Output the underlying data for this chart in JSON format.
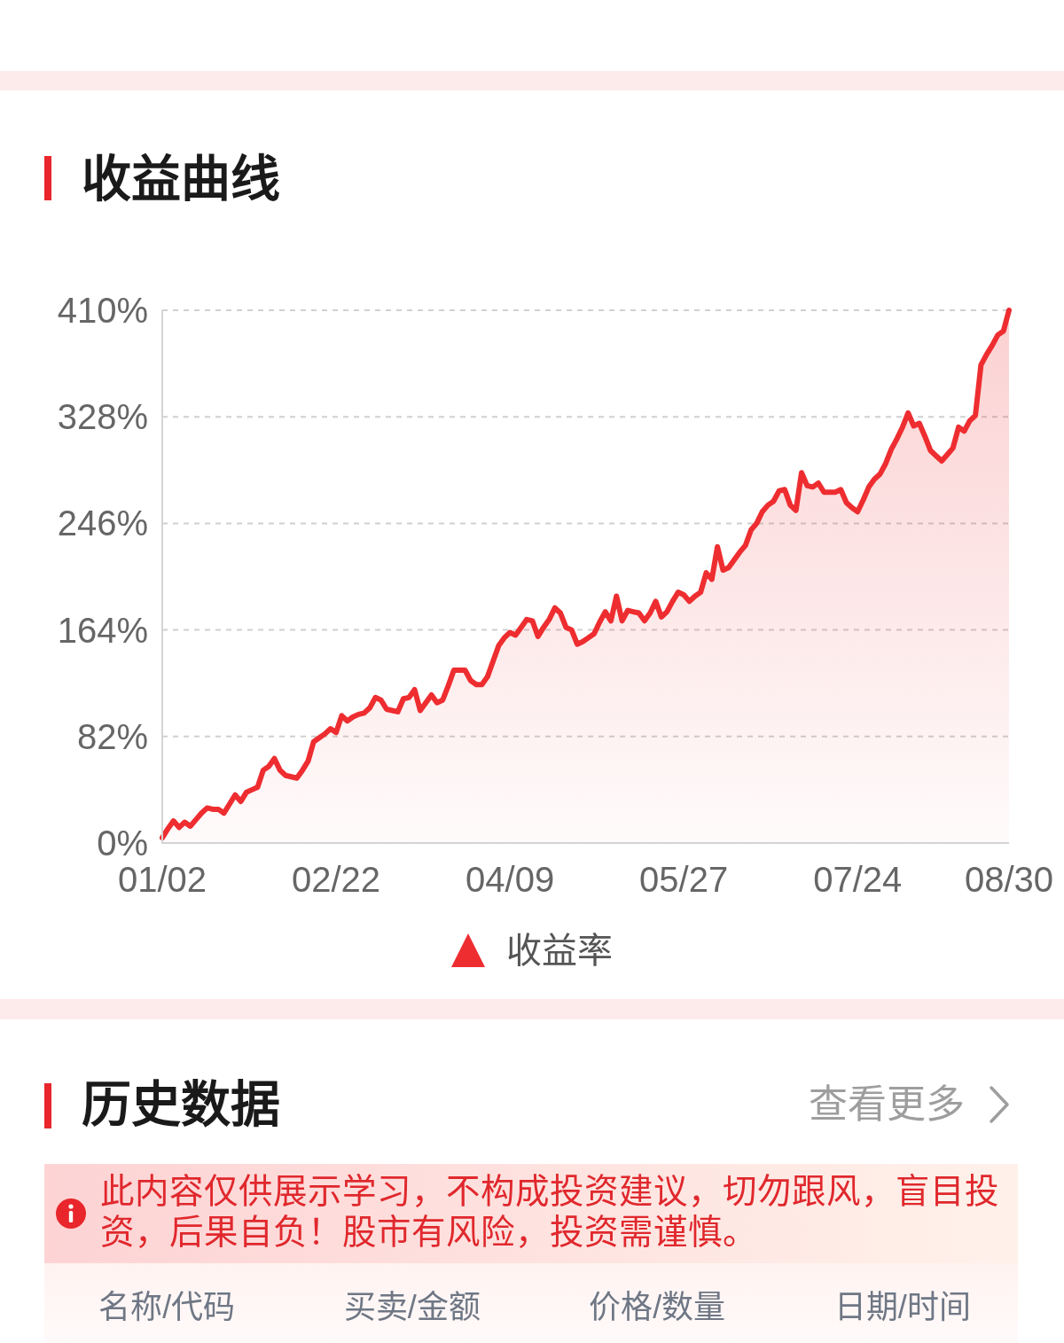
{
  "chart_data": {
    "type": "area",
    "title": "收益曲线",
    "categories": [
      "01/02",
      null,
      null,
      null,
      null,
      null,
      null,
      null,
      null,
      null,
      null,
      null,
      null,
      null,
      null,
      null,
      null,
      null,
      null,
      null,
      null,
      null,
      null,
      null,
      null,
      null,
      null,
      null,
      null,
      null,
      null,
      "02/22",
      null,
      null,
      null,
      null,
      null,
      null,
      null,
      null,
      null,
      null,
      null,
      null,
      null,
      null,
      null,
      null,
      null,
      null,
      null,
      null,
      null,
      null,
      null,
      null,
      null,
      null,
      null,
      null,
      null,
      null,
      "04/09",
      null,
      null,
      null,
      null,
      null,
      null,
      null,
      null,
      null,
      null,
      null,
      null,
      null,
      null,
      null,
      null,
      null,
      null,
      null,
      null,
      null,
      null,
      null,
      null,
      null,
      null,
      null,
      null,
      null,
      null,
      "05/27",
      null,
      null,
      null,
      null,
      null,
      null,
      null,
      null,
      null,
      null,
      null,
      null,
      null,
      null,
      null,
      null,
      null,
      null,
      null,
      null,
      null,
      null,
      null,
      null,
      null,
      null,
      null,
      null,
      null,
      null,
      "07/24",
      null,
      null,
      null,
      null,
      null,
      null,
      null,
      null,
      null,
      null,
      null,
      null,
      null,
      null,
      null,
      null,
      null,
      null,
      null,
      null,
      null,
      null,
      null,
      null,
      null,
      null,
      "08/30"
    ],
    "series": [
      {
        "name": "收益率",
        "color": "#ee2d30",
        "values": [
          4,
          11,
          17,
          12,
          16,
          13,
          18,
          23,
          27,
          26,
          26,
          23,
          30,
          37,
          32,
          39,
          41,
          43,
          56,
          59,
          65,
          56,
          52,
          51,
          50,
          56,
          63,
          78,
          81,
          84,
          88,
          85,
          98,
          94,
          97,
          99,
          100,
          104,
          112,
          110,
          103,
          102,
          101,
          111,
          112,
          118,
          102,
          108,
          114,
          108,
          110,
          121,
          133,
          133,
          133,
          125,
          122,
          122,
          128,
          140,
          152,
          158,
          162,
          160,
          166,
          172,
          171,
          159,
          166,
          172,
          181,
          177,
          166,
          164,
          153,
          155,
          158,
          161,
          170,
          178,
          171,
          190,
          171,
          179,
          178,
          177,
          171,
          177,
          186,
          174,
          178,
          186,
          193,
          191,
          186,
          190,
          193,
          208,
          203,
          228,
          210,
          212,
          218,
          224,
          229,
          241,
          246,
          255,
          260,
          263,
          271,
          272,
          260,
          256,
          285,
          275,
          274,
          277,
          270,
          270,
          270,
          272,
          262,
          258,
          255,
          264,
          274,
          280,
          284,
          292,
          303,
          311,
          320,
          331,
          321,
          323,
          313,
          302,
          298,
          294,
          299,
          304,
          320,
          317,
          325,
          329,
          368,
          376,
          383,
          391,
          394,
          410
        ]
      }
    ],
    "ylim": [
      0,
      410
    ],
    "yticks": [
      {
        "value": 0,
        "label": "0%"
      },
      {
        "value": 82,
        "label": "82%"
      },
      {
        "value": 164,
        "label": "164%"
      },
      {
        "value": 246,
        "label": "246%"
      },
      {
        "value": 328,
        "label": "328%"
      },
      {
        "value": 410,
        "label": "410%"
      }
    ],
    "grid": "y",
    "legend": "bottom",
    "annotations": [
      "历史数据",
      "查看更多",
      "此内容仅供展示学习，不构成投资建议，切勿跟风，盲目投资，后果自负！股市有风险，投资需谨慎。",
      "名称/代码",
      "买卖/金额",
      "价格/数量",
      "日期/时间"
    ]
  }
}
